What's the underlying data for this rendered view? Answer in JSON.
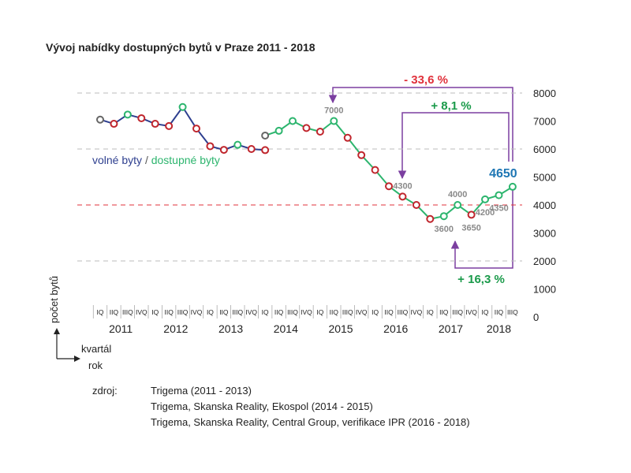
{
  "chart_data": {
    "type": "line",
    "title": "Vývoj nabídky dostupných bytů v Praze 2011 - 2018",
    "categories": [
      "IQ",
      "IIQ",
      "IIIQ",
      "IVQ",
      "IQ",
      "IIQ",
      "IIIQ",
      "IVQ",
      "IQ",
      "IIQ",
      "IIIQ",
      "IVQ",
      "IQ",
      "IIQ",
      "IIIQ",
      "IVQ",
      "IQ",
      "IIQ",
      "IIIQ",
      "IVQ",
      "IQ",
      "IIQ",
      "IIIQ",
      "IVQ",
      "IQ",
      "IIQ",
      "IIIQ",
      "IVQ",
      "IQ",
      "IIQ",
      "IIIQ"
    ],
    "years": [
      "2011",
      "2012",
      "2013",
      "2014",
      "2015",
      "2016",
      "2017",
      "2018"
    ],
    "series": [
      {
        "name": "volné byty",
        "color": "#2e3f8f",
        "values": [
          7050,
          6900,
          7230,
          7100,
          6900,
          6820,
          7500,
          6730,
          6100,
          5970,
          6150,
          6000,
          5960,
          null,
          null,
          null,
          null,
          null,
          null,
          null,
          null,
          null,
          null,
          null,
          null,
          null,
          null,
          null,
          null,
          null,
          null
        ],
        "marker_colors": [
          "#666666",
          "#c0262d",
          "#2db56e",
          "#c0262d",
          "#c0262d",
          "#c0262d",
          "#2db56e",
          "#c0262d",
          "#c0262d",
          "#c0262d",
          "#2db56e",
          "#c0262d",
          "#c0262d",
          null,
          null,
          null,
          null,
          null,
          null,
          null,
          null,
          null,
          null,
          null,
          null,
          null,
          null,
          null,
          null,
          null,
          null
        ]
      },
      {
        "name": "dostupné byty",
        "color": "#2db56e",
        "values": [
          null,
          null,
          null,
          null,
          null,
          null,
          null,
          null,
          null,
          null,
          null,
          null,
          6480,
          6650,
          7000,
          6750,
          6620,
          7000,
          6400,
          5780,
          5250,
          4670,
          4300,
          4000,
          3500,
          3600,
          4000,
          3650,
          4200,
          4350,
          4650
        ],
        "marker_colors": [
          null,
          null,
          null,
          null,
          null,
          null,
          null,
          null,
          null,
          null,
          null,
          null,
          "#666666",
          "#2db56e",
          "#2db56e",
          "#c0262d",
          "#c0262d",
          "#2db56e",
          "#c0262d",
          "#c0262d",
          "#c0262d",
          "#c0262d",
          "#c0262d",
          "#c0262d",
          "#c0262d",
          "#2db56e",
          "#2db56e",
          "#c0262d",
          "#2db56e",
          "#2db56e",
          "#2db56e"
        ],
        "value_labels": [
          null,
          null,
          null,
          null,
          null,
          null,
          null,
          null,
          null,
          null,
          null,
          null,
          null,
          null,
          null,
          null,
          null,
          "7000",
          null,
          null,
          null,
          null,
          "4300",
          null,
          null,
          "3600",
          "4000",
          "3650",
          "4200",
          "4350",
          "4650"
        ],
        "last_label_color": "#1f77b4"
      }
    ],
    "legend_separator": "/",
    "ylim": [
      0,
      8000
    ],
    "yticks": [
      0,
      1000,
      2000,
      3000,
      4000,
      5000,
      6000,
      7000,
      8000
    ],
    "grid": true,
    "reference_line": {
      "value": 4000,
      "color": "#e0313b"
    },
    "annotations": [
      {
        "text": "- 33,6 %",
        "color": "#e0313b"
      },
      {
        "text": "+ 8,1 %",
        "color": "#1a9a4a"
      },
      {
        "text": "+ 16,3 %",
        "color": "#1a9a4a"
      }
    ],
    "y_label": "počet bytů",
    "x_label": "kvartál",
    "x_label_2": "rok",
    "source": {
      "label": "zdroj:",
      "lines": [
        "Trigema (2011 - 2013)",
        "Trigema, Skanska Reality, Ekospol (2014 - 2015)",
        "Trigema, Skanska Reality, Central Group, verifikace IPR (2016 - 2018)"
      ]
    }
  }
}
